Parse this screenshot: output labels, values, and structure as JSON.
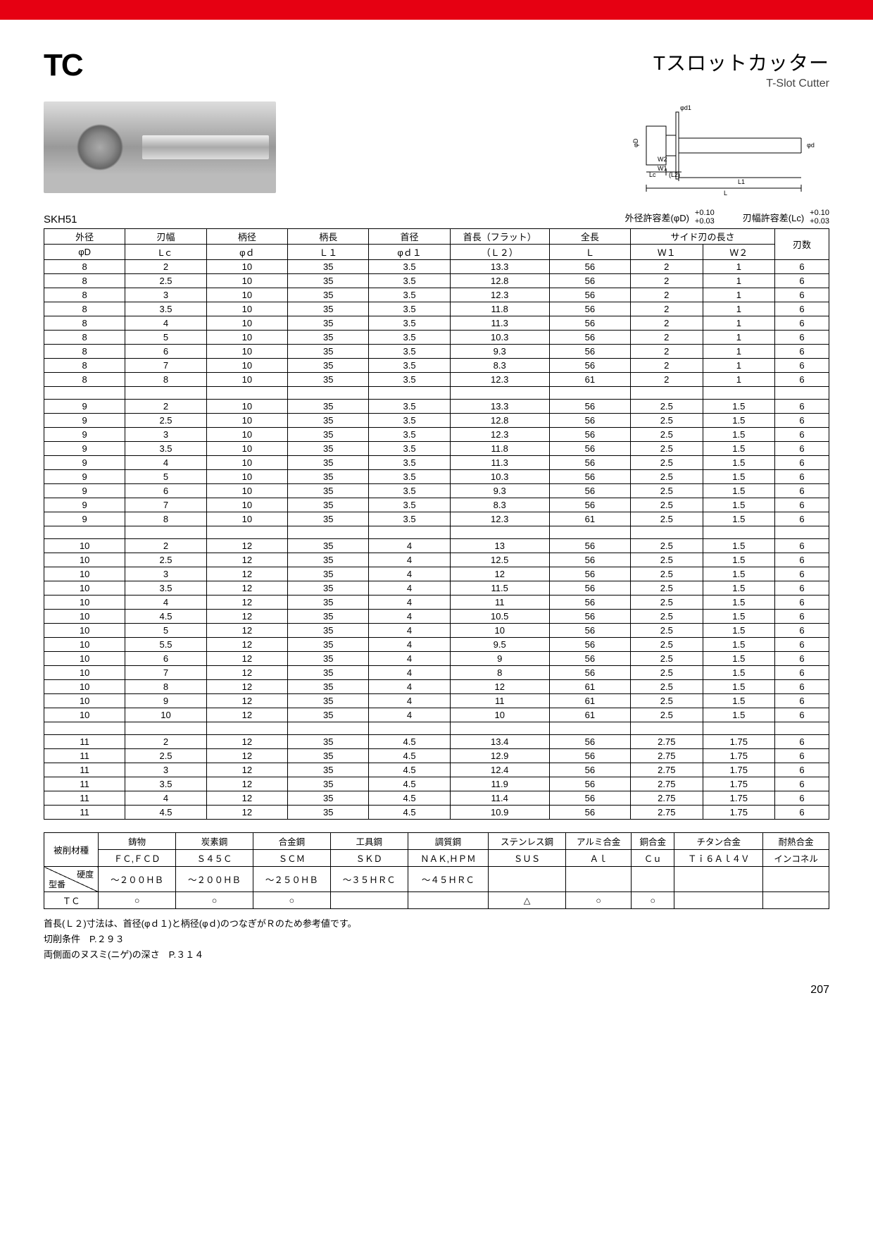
{
  "logo": "TC",
  "title_jp": "Tスロットカッター",
  "title_en": "T-Slot Cutter",
  "material_code": "SKH51",
  "tolerances": [
    {
      "label": "外径許容差(φD)",
      "top": "+0.10",
      "bot": "+0.03"
    },
    {
      "label": "刃幅許容差(Lc)",
      "top": "+0.10",
      "bot": "+0.03"
    }
  ],
  "main_table": {
    "header_row1": [
      "外径",
      "刃幅",
      "柄径",
      "柄長",
      "首径",
      "首長（フラット）",
      "全長",
      "サイド刃の長さ",
      "",
      "刃数"
    ],
    "header_row2": [
      "φD",
      "Lｃ",
      "φｄ",
      "Ｌ１",
      "φｄ１",
      "（Ｌ２）",
      "Ｌ",
      "Ｗ１",
      "Ｗ２",
      ""
    ],
    "colspans_r1": [
      1,
      1,
      1,
      1,
      1,
      1,
      1,
      2,
      0,
      1
    ],
    "rowspans_last": true,
    "groups": [
      [
        [
          "8",
          "2",
          "10",
          "35",
          "3.5",
          "13.3",
          "56",
          "2",
          "1",
          "6"
        ],
        [
          "8",
          "2.5",
          "10",
          "35",
          "3.5",
          "12.8",
          "56",
          "2",
          "1",
          "6"
        ],
        [
          "8",
          "3",
          "10",
          "35",
          "3.5",
          "12.3",
          "56",
          "2",
          "1",
          "6"
        ],
        [
          "8",
          "3.5",
          "10",
          "35",
          "3.5",
          "11.8",
          "56",
          "2",
          "1",
          "6"
        ],
        [
          "8",
          "4",
          "10",
          "35",
          "3.5",
          "11.3",
          "56",
          "2",
          "1",
          "6"
        ],
        [
          "8",
          "5",
          "10",
          "35",
          "3.5",
          "10.3",
          "56",
          "2",
          "1",
          "6"
        ],
        [
          "8",
          "6",
          "10",
          "35",
          "3.5",
          "9.3",
          "56",
          "2",
          "1",
          "6"
        ],
        [
          "8",
          "7",
          "10",
          "35",
          "3.5",
          "8.3",
          "56",
          "2",
          "1",
          "6"
        ],
        [
          "8",
          "8",
          "10",
          "35",
          "3.5",
          "12.3",
          "61",
          "2",
          "1",
          "6"
        ]
      ],
      [
        [
          "9",
          "2",
          "10",
          "35",
          "3.5",
          "13.3",
          "56",
          "2.5",
          "1.5",
          "6"
        ],
        [
          "9",
          "2.5",
          "10",
          "35",
          "3.5",
          "12.8",
          "56",
          "2.5",
          "1.5",
          "6"
        ],
        [
          "9",
          "3",
          "10",
          "35",
          "3.5",
          "12.3",
          "56",
          "2.5",
          "1.5",
          "6"
        ],
        [
          "9",
          "3.5",
          "10",
          "35",
          "3.5",
          "11.8",
          "56",
          "2.5",
          "1.5",
          "6"
        ],
        [
          "9",
          "4",
          "10",
          "35",
          "3.5",
          "11.3",
          "56",
          "2.5",
          "1.5",
          "6"
        ],
        [
          "9",
          "5",
          "10",
          "35",
          "3.5",
          "10.3",
          "56",
          "2.5",
          "1.5",
          "6"
        ],
        [
          "9",
          "6",
          "10",
          "35",
          "3.5",
          "9.3",
          "56",
          "2.5",
          "1.5",
          "6"
        ],
        [
          "9",
          "7",
          "10",
          "35",
          "3.5",
          "8.3",
          "56",
          "2.5",
          "1.5",
          "6"
        ],
        [
          "9",
          "8",
          "10",
          "35",
          "3.5",
          "12.3",
          "61",
          "2.5",
          "1.5",
          "6"
        ]
      ],
      [
        [
          "10",
          "2",
          "12",
          "35",
          "4",
          "13",
          "56",
          "2.5",
          "1.5",
          "6"
        ],
        [
          "10",
          "2.5",
          "12",
          "35",
          "4",
          "12.5",
          "56",
          "2.5",
          "1.5",
          "6"
        ],
        [
          "10",
          "3",
          "12",
          "35",
          "4",
          "12",
          "56",
          "2.5",
          "1.5",
          "6"
        ],
        [
          "10",
          "3.5",
          "12",
          "35",
          "4",
          "11.5",
          "56",
          "2.5",
          "1.5",
          "6"
        ],
        [
          "10",
          "4",
          "12",
          "35",
          "4",
          "11",
          "56",
          "2.5",
          "1.5",
          "6"
        ],
        [
          "10",
          "4.5",
          "12",
          "35",
          "4",
          "10.5",
          "56",
          "2.5",
          "1.5",
          "6"
        ],
        [
          "10",
          "5",
          "12",
          "35",
          "4",
          "10",
          "56",
          "2.5",
          "1.5",
          "6"
        ],
        [
          "10",
          "5.5",
          "12",
          "35",
          "4",
          "9.5",
          "56",
          "2.5",
          "1.5",
          "6"
        ],
        [
          "10",
          "6",
          "12",
          "35",
          "4",
          "9",
          "56",
          "2.5",
          "1.5",
          "6"
        ],
        [
          "10",
          "7",
          "12",
          "35",
          "4",
          "8",
          "56",
          "2.5",
          "1.5",
          "6"
        ],
        [
          "10",
          "8",
          "12",
          "35",
          "4",
          "12",
          "61",
          "2.5",
          "1.5",
          "6"
        ],
        [
          "10",
          "9",
          "12",
          "35",
          "4",
          "11",
          "61",
          "2.5",
          "1.5",
          "6"
        ],
        [
          "10",
          "10",
          "12",
          "35",
          "4",
          "10",
          "61",
          "2.5",
          "1.5",
          "6"
        ]
      ],
      [
        [
          "11",
          "2",
          "12",
          "35",
          "4.5",
          "13.4",
          "56",
          "2.75",
          "1.75",
          "6"
        ],
        [
          "11",
          "2.5",
          "12",
          "35",
          "4.5",
          "12.9",
          "56",
          "2.75",
          "1.75",
          "6"
        ],
        [
          "11",
          "3",
          "12",
          "35",
          "4.5",
          "12.4",
          "56",
          "2.75",
          "1.75",
          "6"
        ],
        [
          "11",
          "3.5",
          "12",
          "35",
          "4.5",
          "11.9",
          "56",
          "2.75",
          "1.75",
          "6"
        ],
        [
          "11",
          "4",
          "12",
          "35",
          "4.5",
          "11.4",
          "56",
          "2.75",
          "1.75",
          "6"
        ],
        [
          "11",
          "4.5",
          "12",
          "35",
          "4.5",
          "10.9",
          "56",
          "2.75",
          "1.75",
          "6"
        ]
      ]
    ]
  },
  "mat_table": {
    "row1": [
      "被削材種",
      "鋳物",
      "炭素鋼",
      "合金鋼",
      "工具鋼",
      "調質鋼",
      "ステンレス鋼",
      "アルミ合金",
      "銅合金",
      "チタン合金",
      "耐熱合金"
    ],
    "row2": [
      "",
      "ＦＣ,ＦＣＤ",
      "Ｓ４５Ｃ",
      "ＳＣＭ",
      "ＳＫＤ",
      "ＮＡＫ,ＨＰＭ",
      "ＳＵＳ",
      "Ａｌ",
      "Ｃｕ",
      "Ｔｉ６Ａｌ４Ｖ",
      "インコネル"
    ],
    "row3_diag": {
      "top": "硬度",
      "bot": "型番"
    },
    "row3": [
      "～２００ＨＢ",
      "～２００ＨＢ",
      "～２５０ＨＢ",
      "～３５ＨＲＣ",
      "～４５ＨＲＣ",
      "",
      "",
      "",
      "",
      ""
    ],
    "row4": [
      "ＴＣ",
      "○",
      "○",
      "○",
      "",
      "",
      "△",
      "○",
      "○",
      "",
      ""
    ]
  },
  "notes": [
    "首長(Ｌ２)寸法は、首径(φｄ１)と柄径(φｄ)のつなぎがＲのため参考値です。",
    "切削条件　P.２９３",
    "両側面のヌスミ(ニゲ)の深さ　P.３１４"
  ],
  "page_number": "207",
  "col_widths": [
    "90",
    "90",
    "90",
    "90",
    "90",
    "110",
    "90",
    "80",
    "80",
    "60"
  ]
}
